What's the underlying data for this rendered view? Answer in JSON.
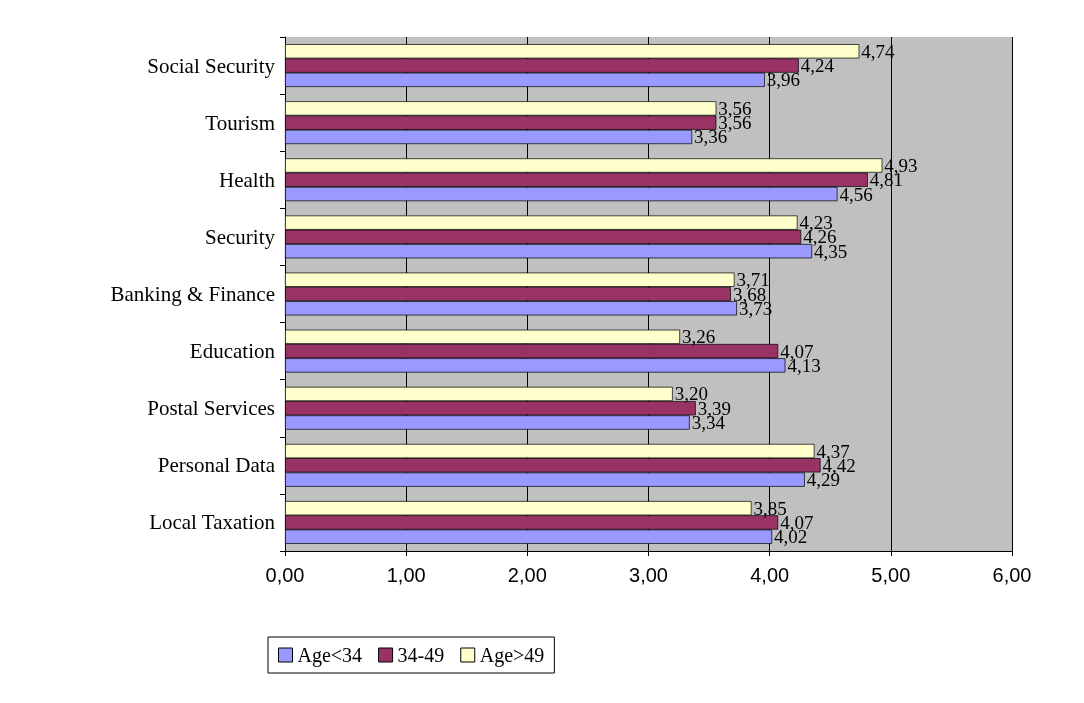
{
  "chart_data": {
    "type": "bar",
    "orientation": "horizontal",
    "categories": [
      "Social Security",
      "Tourism",
      "Health",
      "Security",
      "Banking & Finance",
      "Education",
      "Postal Services",
      "Personal Data",
      "Local Taxation"
    ],
    "series": [
      {
        "name": "Age<34",
        "color": "#9999ff",
        "values": [
          3.96,
          3.36,
          4.56,
          4.35,
          3.73,
          4.13,
          3.34,
          4.29,
          4.02
        ],
        "value_labels": [
          "3,96",
          "3,36",
          "4,56",
          "4,35",
          "3,73",
          "4,13",
          "3,34",
          "4,29",
          "4,02"
        ]
      },
      {
        "name": "34-49",
        "color": "#993366",
        "values": [
          4.24,
          3.56,
          4.81,
          4.26,
          3.68,
          4.07,
          3.39,
          4.42,
          4.07
        ],
        "value_labels": [
          "4,24",
          "3,56",
          "4,81",
          "4,26",
          "3,68",
          "4,07",
          "3,39",
          "4,42",
          "4,07"
        ]
      },
      {
        "name": "Age>49",
        "color": "#ffffcc",
        "values": [
          4.74,
          3.56,
          4.93,
          4.23,
          3.71,
          3.26,
          3.2,
          4.37,
          3.85
        ],
        "value_labels": [
          "4,74",
          "3,56",
          "4,93",
          "4,23",
          "3,71",
          "3,26",
          "3,20",
          "4,37",
          "3,85"
        ]
      }
    ],
    "xlim": [
      0,
      6
    ],
    "xticks": [
      {
        "value": 0,
        "label": "0,00"
      },
      {
        "value": 1,
        "label": "1,00"
      },
      {
        "value": 2,
        "label": "2,00"
      },
      {
        "value": 3,
        "label": "3,00"
      },
      {
        "value": 4,
        "label": "4,00"
      },
      {
        "value": 5,
        "label": "5,00"
      },
      {
        "value": 6,
        "label": "6,00"
      }
    ],
    "grid": "x",
    "legend": "bottom"
  }
}
